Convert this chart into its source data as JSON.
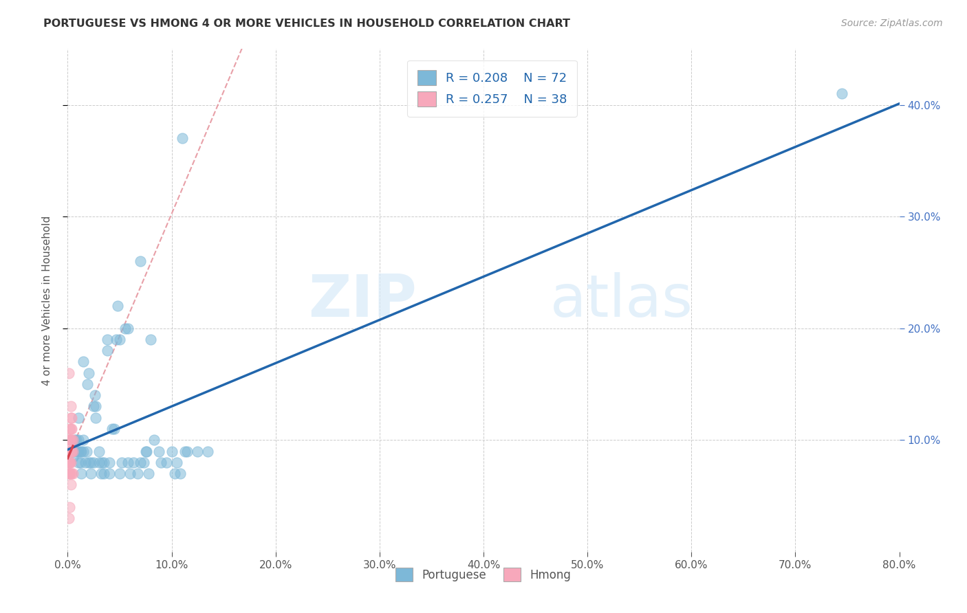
{
  "title": "PORTUGUESE VS HMONG 4 OR MORE VEHICLES IN HOUSEHOLD CORRELATION CHART",
  "source": "Source: ZipAtlas.com",
  "ylabel": "4 or more Vehicles in Household",
  "xlim": [
    0,
    0.8
  ],
  "ylim": [
    0,
    0.45
  ],
  "xtick_vals": [
    0.0,
    0.1,
    0.2,
    0.3,
    0.4,
    0.5,
    0.6,
    0.7,
    0.8
  ],
  "xtick_labels": [
    "0.0%",
    "",
    "",
    "",
    "",
    "",
    "",
    "",
    "80.0%"
  ],
  "ytick_vals": [
    0.1,
    0.2,
    0.3,
    0.4
  ],
  "ytick_labels": [
    "10.0%",
    "20.0%",
    "30.0%",
    "40.0%"
  ],
  "blue_color": "#7db8d8",
  "pink_color": "#f7a8bb",
  "trendline_blue": "#2166ac",
  "trendline_pink": "#d6424e",
  "trendline_dashed_color": "#e8a0a8",
  "legend_r_blue": "0.208",
  "legend_n_blue": "72",
  "legend_r_pink": "0.257",
  "legend_n_pink": "38",
  "legend_text_color": "#2166ac",
  "watermark_text": "ZIPatlas",
  "portuguese_x": [
    0.005,
    0.005,
    0.007,
    0.008,
    0.009,
    0.01,
    0.01,
    0.01,
    0.01,
    0.012,
    0.012,
    0.013,
    0.013,
    0.015,
    0.015,
    0.015,
    0.017,
    0.018,
    0.019,
    0.02,
    0.02,
    0.022,
    0.022,
    0.025,
    0.025,
    0.026,
    0.027,
    0.027,
    0.03,
    0.03,
    0.032,
    0.033,
    0.035,
    0.035,
    0.038,
    0.038,
    0.04,
    0.04,
    0.043,
    0.045,
    0.047,
    0.048,
    0.05,
    0.05,
    0.052,
    0.055,
    0.058,
    0.058,
    0.06,
    0.063,
    0.067,
    0.07,
    0.07,
    0.073,
    0.075,
    0.076,
    0.078,
    0.08,
    0.083,
    0.088,
    0.09,
    0.095,
    0.1,
    0.103,
    0.105,
    0.108,
    0.11,
    0.113,
    0.115,
    0.125,
    0.135,
    0.745
  ],
  "portuguese_y": [
    0.09,
    0.085,
    0.1,
    0.1,
    0.09,
    0.09,
    0.1,
    0.12,
    0.08,
    0.09,
    0.08,
    0.09,
    0.07,
    0.1,
    0.09,
    0.17,
    0.08,
    0.09,
    0.15,
    0.16,
    0.08,
    0.07,
    0.08,
    0.08,
    0.13,
    0.14,
    0.12,
    0.13,
    0.08,
    0.09,
    0.07,
    0.08,
    0.07,
    0.08,
    0.18,
    0.19,
    0.07,
    0.08,
    0.11,
    0.11,
    0.19,
    0.22,
    0.07,
    0.19,
    0.08,
    0.2,
    0.2,
    0.08,
    0.07,
    0.08,
    0.07,
    0.08,
    0.26,
    0.08,
    0.09,
    0.09,
    0.07,
    0.19,
    0.1,
    0.09,
    0.08,
    0.08,
    0.09,
    0.07,
    0.08,
    0.07,
    0.37,
    0.09,
    0.09,
    0.09,
    0.09,
    0.41
  ],
  "hmong_x": [
    0.001,
    0.001,
    0.001,
    0.001,
    0.001,
    0.001,
    0.001,
    0.001,
    0.001,
    0.002,
    0.002,
    0.002,
    0.002,
    0.002,
    0.002,
    0.002,
    0.002,
    0.002,
    0.002,
    0.002,
    0.002,
    0.003,
    0.003,
    0.003,
    0.003,
    0.003,
    0.003,
    0.003,
    0.003,
    0.004,
    0.004,
    0.004,
    0.004,
    0.004,
    0.004,
    0.005,
    0.005,
    0.005
  ],
  "hmong_y": [
    0.16,
    0.1,
    0.09,
    0.09,
    0.09,
    0.08,
    0.08,
    0.07,
    0.03,
    0.11,
    0.1,
    0.1,
    0.09,
    0.09,
    0.09,
    0.08,
    0.08,
    0.08,
    0.07,
    0.07,
    0.04,
    0.13,
    0.12,
    0.11,
    0.1,
    0.09,
    0.08,
    0.07,
    0.06,
    0.12,
    0.11,
    0.1,
    0.09,
    0.09,
    0.07,
    0.1,
    0.09,
    0.07
  ]
}
